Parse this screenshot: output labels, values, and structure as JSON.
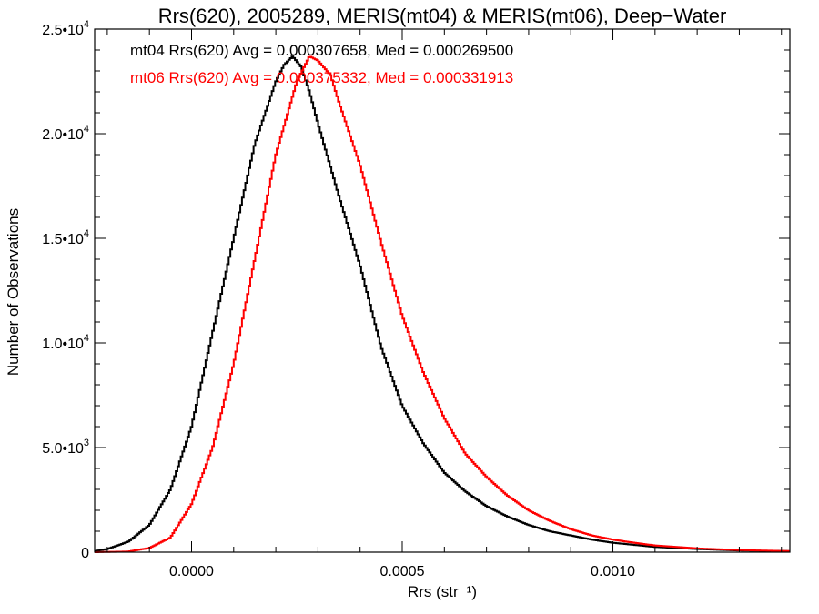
{
  "chart_data": {
    "type": "line",
    "title": "Rrs(620), 2005289, MERIS(mt04) & MERIS(mt06), Deep−Water",
    "xlabel": "Rrs (str⁻¹)",
    "ylabel": "Number of Observations",
    "xlim": [
      -0.00023,
      0.00142
    ],
    "ylim": [
      0,
      25000
    ],
    "x_ticks": [
      0.0,
      0.0005,
      0.001
    ],
    "x_tick_labels": [
      "0.0000",
      "0.0005",
      "0.0010"
    ],
    "y_ticks": [
      0,
      5000,
      10000,
      15000,
      20000,
      25000
    ],
    "y_tick_labels": [
      {
        "mant": "0",
        "exp": ""
      },
      {
        "mant": "5.0•10",
        "exp": "3"
      },
      {
        "mant": "1.0•10",
        "exp": "4"
      },
      {
        "mant": "1.5•10",
        "exp": "4"
      },
      {
        "mant": "2.0•10",
        "exp": "4"
      },
      {
        "mant": "2.5•10",
        "exp": "4"
      }
    ],
    "grid": false,
    "step": true,
    "annotations": [
      {
        "text": "mt04 Rrs(620) Avg = 0.000307658, Med = 0.000269500",
        "color": "#000000"
      },
      {
        "text": "mt06 Rrs(620) Avg = 0.000375332, Med = 0.000331913",
        "color": "#ff0000"
      }
    ],
    "series": [
      {
        "name": "mt04",
        "color": "#000000",
        "x": [
          -0.00023,
          -0.0002,
          -0.00015,
          -0.0001,
          -5e-05,
          0.0,
          5e-05,
          0.0001,
          0.00015,
          0.0002,
          0.00022,
          0.00024,
          0.00026,
          0.00028,
          0.0003,
          0.00035,
          0.0004,
          0.00045,
          0.0005,
          0.00055,
          0.0006,
          0.00065,
          0.0007,
          0.00075,
          0.0008,
          0.00085,
          0.0009,
          0.00095,
          0.001,
          0.00105,
          0.0011,
          0.0012,
          0.0013,
          0.00142
        ],
        "y": [
          50,
          150,
          500,
          1300,
          3000,
          6000,
          10500,
          15000,
          19500,
          22500,
          23300,
          23700,
          23200,
          22000,
          20500,
          17000,
          13700,
          9800,
          7000,
          5200,
          3800,
          2900,
          2200,
          1700,
          1300,
          1000,
          800,
          600,
          450,
          350,
          250,
          150,
          80,
          50
        ]
      },
      {
        "name": "mt06",
        "color": "#ff0000",
        "x": [
          -0.00023,
          -0.00015,
          -0.0001,
          -5e-05,
          0.0,
          5e-05,
          0.0001,
          0.00015,
          0.0002,
          0.00025,
          0.00028,
          0.0003,
          0.00033,
          0.00035,
          0.0004,
          0.00045,
          0.0005,
          0.00055,
          0.0006,
          0.00065,
          0.0007,
          0.00075,
          0.0008,
          0.00085,
          0.0009,
          0.00095,
          0.001,
          0.00105,
          0.0011,
          0.0012,
          0.0013,
          0.00142
        ],
        "y": [
          0,
          30,
          200,
          700,
          2300,
          5000,
          9000,
          14000,
          19000,
          22500,
          23700,
          23500,
          22800,
          21500,
          18500,
          14800,
          11300,
          8600,
          6400,
          4700,
          3600,
          2700,
          2000,
          1500,
          1100,
          800,
          600,
          450,
          320,
          180,
          100,
          50
        ]
      }
    ]
  }
}
